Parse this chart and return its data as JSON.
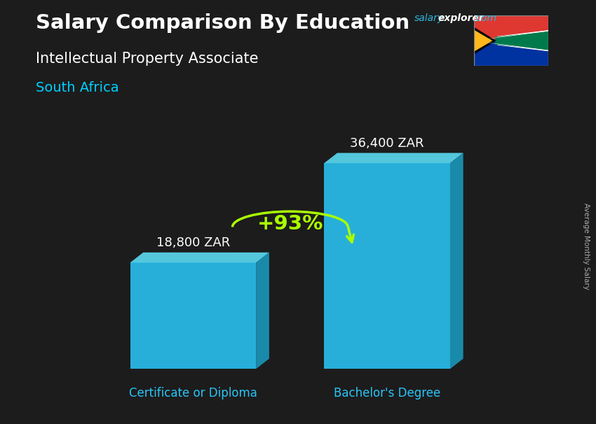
{
  "title_main": "Salary Comparison By Education",
  "subtitle": "Intellectual Property Associate",
  "country": "South Africa",
  "categories": [
    "Certificate or Diploma",
    "Bachelor's Degree"
  ],
  "values": [
    18800,
    36400
  ],
  "value_labels": [
    "18,800 ZAR",
    "36,400 ZAR"
  ],
  "pct_change": "+93%",
  "bar_color_face": "#29c5f6",
  "bar_color_top": "#5de0f8",
  "bar_color_side": "#1a9abf",
  "ylabel_rotated": "Average Monthly Salary",
  "ylim_max": 45000,
  "bg_color": "#1c1c1c",
  "title_color": "#ffffff",
  "subtitle_color": "#ffffff",
  "country_color": "#00cfff",
  "value_label_color": "#ffffff",
  "cat_label_color": "#29c5f6",
  "pct_color": "#aaff00",
  "arrow_color": "#aaff00",
  "salary_color": "#29b8e0",
  "explorer_color": "#ffffff",
  "com_color": "#29b8e0"
}
